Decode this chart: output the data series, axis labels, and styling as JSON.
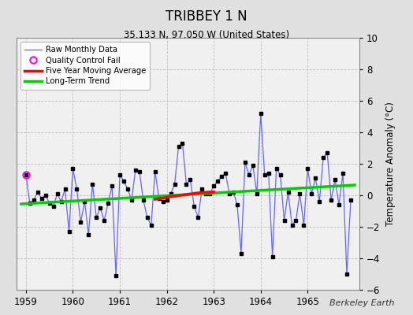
{
  "title": "TRIBBEY 1 N",
  "subtitle": "35.133 N, 97.050 W (United States)",
  "ylabel": "Temperature Anomaly (°C)",
  "credit": "Berkeley Earth",
  "ylim": [
    -6,
    10
  ],
  "xlim": [
    1958.8,
    1966.1
  ],
  "xticks": [
    1959,
    1960,
    1961,
    1962,
    1963,
    1964,
    1965
  ],
  "yticks": [
    -6,
    -4,
    -2,
    0,
    2,
    4,
    6,
    8,
    10
  ],
  "bg_color": "#e0e0e0",
  "plot_bg_color": "#f0f0f0",
  "grid_color": "#c0c0c0",
  "raw_color": "#6666ff",
  "raw_marker_color": "#000000",
  "qc_color": "#ff00ff",
  "moving_avg_color": "#ff0000",
  "trend_color": "#00cc00",
  "raw_monthly_x": [
    1959.0,
    1959.083,
    1959.167,
    1959.25,
    1959.333,
    1959.417,
    1959.5,
    1959.583,
    1959.667,
    1959.75,
    1959.833,
    1959.917,
    1960.0,
    1960.083,
    1960.167,
    1960.25,
    1960.333,
    1960.417,
    1960.5,
    1960.583,
    1960.667,
    1960.75,
    1960.833,
    1960.917,
    1961.0,
    1961.083,
    1961.167,
    1961.25,
    1961.333,
    1961.417,
    1961.5,
    1961.583,
    1961.667,
    1961.75,
    1961.833,
    1961.917,
    1962.0,
    1962.083,
    1962.167,
    1962.25,
    1962.333,
    1962.417,
    1962.5,
    1962.583,
    1962.667,
    1962.75,
    1962.833,
    1962.917,
    1963.0,
    1963.083,
    1963.167,
    1963.25,
    1963.333,
    1963.417,
    1963.5,
    1963.583,
    1963.667,
    1963.75,
    1963.833,
    1963.917,
    1964.0,
    1964.083,
    1964.167,
    1964.25,
    1964.333,
    1964.417,
    1964.5,
    1964.583,
    1964.667,
    1964.75,
    1964.833,
    1964.917,
    1965.0,
    1965.083,
    1965.167,
    1965.25,
    1965.333,
    1965.417,
    1965.5,
    1965.583,
    1965.667,
    1965.75,
    1965.833,
    1965.917
  ],
  "raw_monthly_y": [
    1.3,
    -0.5,
    -0.3,
    0.2,
    -0.2,
    0.0,
    -0.5,
    -0.7,
    0.1,
    -0.4,
    0.4,
    -2.3,
    1.7,
    0.4,
    -1.7,
    -0.4,
    -2.5,
    0.7,
    -1.4,
    -0.8,
    -1.6,
    -0.5,
    0.6,
    -5.1,
    1.3,
    0.9,
    0.4,
    -0.3,
    1.6,
    1.5,
    -0.3,
    -1.4,
    -1.9,
    1.5,
    -0.2,
    -0.4,
    -0.3,
    0.1,
    0.7,
    3.1,
    3.3,
    0.7,
    1.0,
    -0.7,
    -1.4,
    0.4,
    0.1,
    0.1,
    0.6,
    0.9,
    1.2,
    1.4,
    0.1,
    0.2,
    -0.6,
    -3.7,
    2.1,
    1.3,
    1.9,
    0.1,
    5.2,
    1.3,
    1.4,
    -3.9,
    1.7,
    1.3,
    -1.6,
    0.2,
    -1.9,
    -1.6,
    0.1,
    -1.9,
    1.7,
    0.1,
    1.1,
    -0.4,
    2.4,
    2.7,
    -0.3,
    1.0,
    -0.6,
    1.4,
    -5.0,
    -0.3
  ],
  "qc_fail_x": [
    1959.0
  ],
  "qc_fail_y": [
    1.3
  ],
  "moving_avg_x": [
    1961.75,
    1961.917,
    1962.0,
    1962.083,
    1962.25,
    1962.417,
    1962.583,
    1962.667,
    1962.75,
    1962.917,
    1963.0
  ],
  "moving_avg_y": [
    -0.25,
    -0.18,
    -0.12,
    -0.08,
    -0.02,
    0.05,
    0.12,
    0.15,
    0.18,
    0.2,
    0.22
  ],
  "trend_x": [
    1958.9,
    1966.0
  ],
  "trend_y": [
    -0.55,
    0.65
  ]
}
